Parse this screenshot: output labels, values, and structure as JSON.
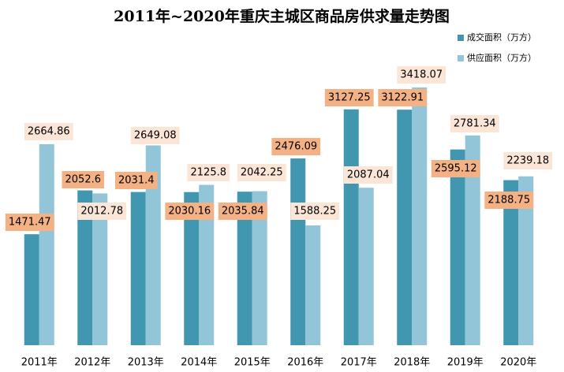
{
  "chart_data": {
    "type": "bar",
    "title": "2011年~2020年重庆主城区商品房供求量走势图",
    "categories": [
      "2011年",
      "2012年",
      "2013年",
      "2014年",
      "2015年",
      "2016年",
      "2017年",
      "2018年",
      "2019年",
      "2020年"
    ],
    "series": [
      {
        "name": "成交面积（万方）",
        "color": "#4197b0",
        "label_color": "#f4b183",
        "values": [
          1471.47,
          2052.6,
          2031.4,
          2030.16,
          2035.84,
          2476.09,
          3127.25,
          3122.91,
          2595.12,
          2188.75
        ]
      },
      {
        "name": "供应面积（万方）",
        "color": "#92c5d7",
        "label_color": "#fbe5d6",
        "values": [
          2664.86,
          2012.78,
          2649.08,
          2125.8,
          2042.25,
          1588.25,
          2087.04,
          3418.07,
          2781.34,
          2239.18
        ]
      }
    ],
    "ylim": [
      0,
      3600
    ]
  }
}
